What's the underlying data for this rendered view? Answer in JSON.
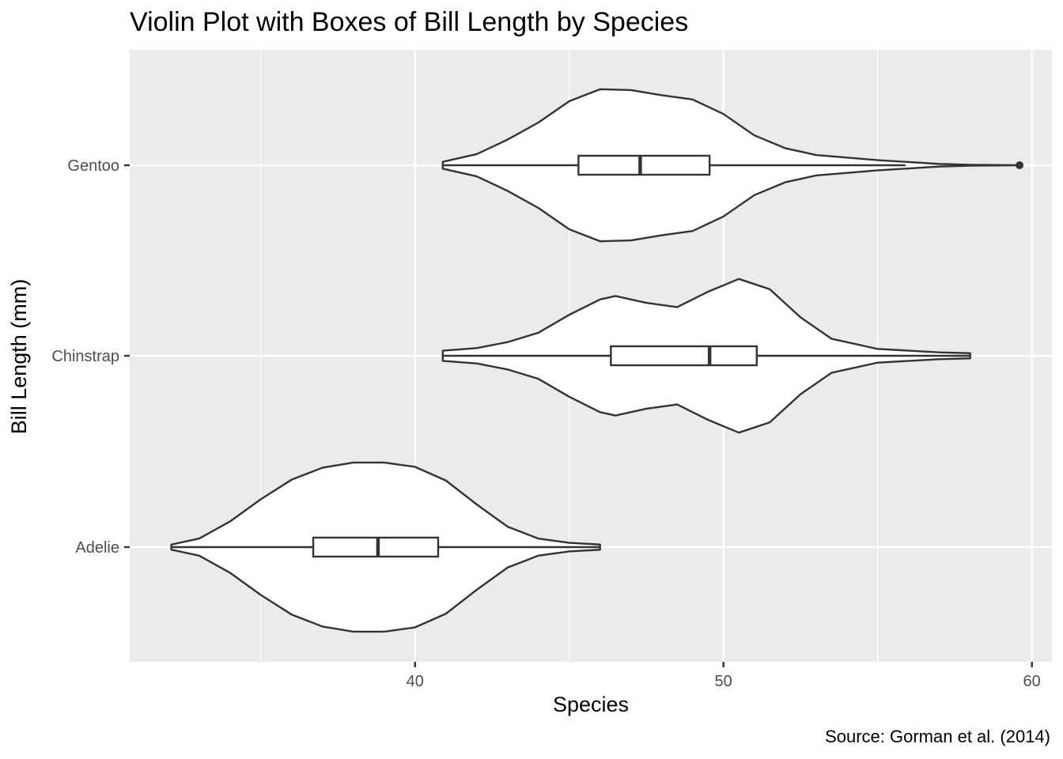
{
  "chart_data": {
    "type": "violin",
    "title": "Violin Plot with Boxes of Bill Length by Species",
    "xlabel": "Species",
    "ylabel": "Bill Length (mm)",
    "caption": "Source: Gorman et al. (2014)",
    "orientation": "horizontal",
    "xlim": [
      30.75,
      60.65
    ],
    "x_ticks": [
      40,
      50,
      60
    ],
    "x_minor_ticks": [
      35,
      45,
      55
    ],
    "categories": [
      "Adelie",
      "Chinstrap",
      "Gentoo"
    ],
    "grid": true,
    "background": "#EBEBEB",
    "colors": {
      "panel": "#EBEBEB",
      "grid": "#FFFFFF",
      "outline": "#333333",
      "violin_fill": "#FFFFFF",
      "text": "#000000",
      "tick_text": "#4D4D4D"
    },
    "series": [
      {
        "category": "Adelie",
        "min": 32.1,
        "max": 46.0,
        "box": {
          "lower_whisker": 32.1,
          "q1": 36.7,
          "median": 38.8,
          "q3": 40.75,
          "upper_whisker": 46.0
        },
        "outliers": [],
        "density": [
          [
            32.1,
            0.03
          ],
          [
            33.0,
            0.1
          ],
          [
            34.0,
            0.3
          ],
          [
            35.0,
            0.56
          ],
          [
            36.0,
            0.79
          ],
          [
            37.0,
            0.93
          ],
          [
            38.0,
            0.99
          ],
          [
            39.0,
            0.99
          ],
          [
            40.0,
            0.94
          ],
          [
            41.0,
            0.78
          ],
          [
            42.0,
            0.5
          ],
          [
            43.0,
            0.24
          ],
          [
            44.0,
            0.1
          ],
          [
            45.0,
            0.05
          ],
          [
            46.0,
            0.03
          ]
        ]
      },
      {
        "category": "Chinstrap",
        "min": 40.9,
        "max": 58.0,
        "box": {
          "lower_whisker": 40.9,
          "q1": 46.35,
          "median": 49.55,
          "q3": 51.08,
          "upper_whisker": 58.0
        },
        "outliers": [],
        "density": [
          [
            40.9,
            0.06
          ],
          [
            42.0,
            0.09
          ],
          [
            43.0,
            0.16
          ],
          [
            44.0,
            0.27
          ],
          [
            45.0,
            0.48
          ],
          [
            46.0,
            0.66
          ],
          [
            46.5,
            0.7
          ],
          [
            47.5,
            0.62
          ],
          [
            48.5,
            0.57
          ],
          [
            49.5,
            0.75
          ],
          [
            50.5,
            0.9
          ],
          [
            51.5,
            0.78
          ],
          [
            52.5,
            0.45
          ],
          [
            53.5,
            0.2
          ],
          [
            55.0,
            0.08
          ],
          [
            57.0,
            0.04
          ],
          [
            58.0,
            0.03
          ]
        ]
      },
      {
        "category": "Gentoo",
        "min": 40.9,
        "max": 59.6,
        "box": {
          "lower_whisker": 40.9,
          "q1": 45.3,
          "median": 47.3,
          "q3": 49.55,
          "upper_whisker": 55.9
        },
        "outliers": [
          59.6
        ],
        "density": [
          [
            40.9,
            0.04
          ],
          [
            42.0,
            0.13
          ],
          [
            43.0,
            0.3
          ],
          [
            44.0,
            0.5
          ],
          [
            45.0,
            0.75
          ],
          [
            46.0,
            0.89
          ],
          [
            47.0,
            0.88
          ],
          [
            48.0,
            0.82
          ],
          [
            49.0,
            0.77
          ],
          [
            50.0,
            0.6
          ],
          [
            51.0,
            0.35
          ],
          [
            52.0,
            0.2
          ],
          [
            53.0,
            0.12
          ],
          [
            55.0,
            0.06
          ],
          [
            57.0,
            0.015
          ],
          [
            58.0,
            0.005
          ],
          [
            59.6,
            0.0
          ]
        ]
      }
    ]
  }
}
